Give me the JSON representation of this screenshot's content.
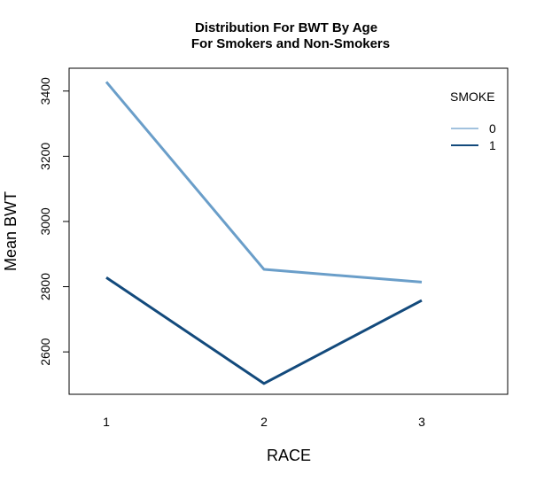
{
  "chart_data": {
    "type": "line",
    "title": "Distribution For BWT By Age",
    "subtitle": "For Smokers and Non-Smokers",
    "xlabel": "RACE",
    "ylabel": "Mean BWT",
    "categories": [
      "1",
      "2",
      "3"
    ],
    "x_ticks": [
      "1",
      "2",
      "3"
    ],
    "y_ticks": [
      "2600",
      "2800",
      "3000",
      "3200",
      "3400"
    ],
    "ylim": [
      2470,
      3470
    ],
    "grid": false,
    "legend": {
      "title": "SMOKE",
      "placement": "top-right"
    },
    "series": [
      {
        "name": "0",
        "values": [
          3428,
          2853,
          2814
        ],
        "color": "#6a9ec9"
      },
      {
        "name": "1",
        "values": [
          2828,
          2503,
          2758
        ],
        "color": "#134a7c"
      }
    ]
  }
}
